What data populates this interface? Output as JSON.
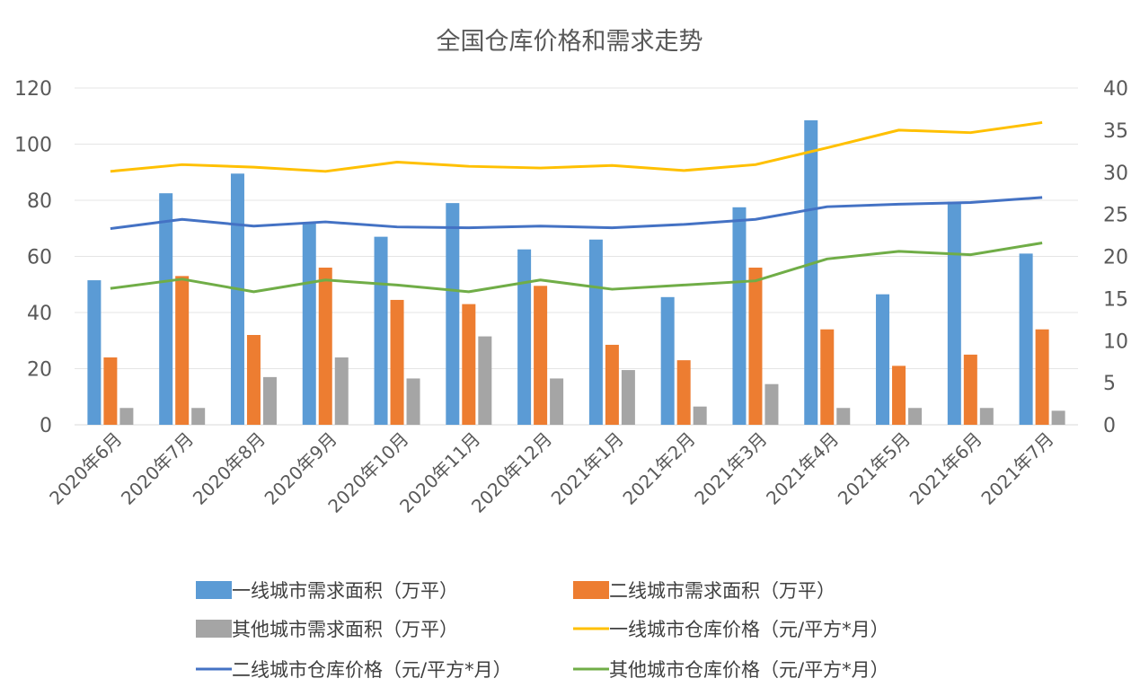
{
  "chart_data": {
    "type": "bar",
    "title": "全国仓库价格和需求走势",
    "categories": [
      "2020年6月",
      "2020年7月",
      "2020年8月",
      "2020年9月",
      "2020年10月",
      "2020年11月",
      "2020年12月",
      "2021年1月",
      "2021年2月",
      "2021年3月",
      "2021年4月",
      "2021年5月",
      "2021年6月",
      "2021年7月"
    ],
    "y_left": {
      "ylim": [
        0,
        120
      ],
      "ticks": [
        "0",
        "20",
        "40",
        "60",
        "80",
        "100",
        "120"
      ]
    },
    "y_right": {
      "ylim": [
        0,
        40
      ],
      "ticks": [
        "0",
        "5",
        "10",
        "15",
        "20",
        "25",
        "30",
        "35",
        "40"
      ]
    },
    "grid": true,
    "legend_position": "bottom",
    "bar_series": [
      {
        "name": "一线城市需求面积（万平）",
        "color": "#5B9BD5",
        "values": [
          51.5,
          82.5,
          89.5,
          72,
          67,
          79,
          62.5,
          66,
          45.5,
          77.5,
          108.5,
          46.5,
          79.5,
          61
        ]
      },
      {
        "name": "二线城市需求面积（万平）",
        "color": "#ED7D31",
        "values": [
          24,
          53,
          32,
          56,
          44.5,
          43,
          49.5,
          28.5,
          23,
          56,
          34,
          21,
          25,
          34
        ]
      },
      {
        "name": "其他城市需求面积（万平）",
        "color": "#A5A5A5",
        "values": [
          6,
          6,
          17,
          24,
          16.5,
          31.5,
          16.5,
          19.5,
          6.5,
          14.5,
          6,
          6,
          6,
          5
        ]
      }
    ],
    "line_series": [
      {
        "name": "一线城市仓库价格（元/平方*月）",
        "color": "#FFC000",
        "values": [
          30.1,
          30.9,
          30.6,
          30.1,
          31.2,
          30.7,
          30.5,
          30.8,
          30.2,
          30.9,
          32.9,
          35.0,
          34.7,
          35.9
        ]
      },
      {
        "name": "二线城市仓库价格（元/平方*月）",
        "color": "#4472C4",
        "values": [
          23.3,
          24.4,
          23.6,
          24.1,
          23.5,
          23.4,
          23.6,
          23.4,
          23.8,
          24.4,
          25.9,
          26.2,
          26.4,
          27.0
        ]
      },
      {
        "name": "其他城市仓库价格（元/平方*月）",
        "color": "#70AD47",
        "values": [
          16.2,
          17.3,
          15.8,
          17.2,
          16.6,
          15.8,
          17.2,
          16.1,
          16.6,
          17.1,
          19.7,
          20.6,
          20.2,
          21.6
        ]
      }
    ]
  }
}
